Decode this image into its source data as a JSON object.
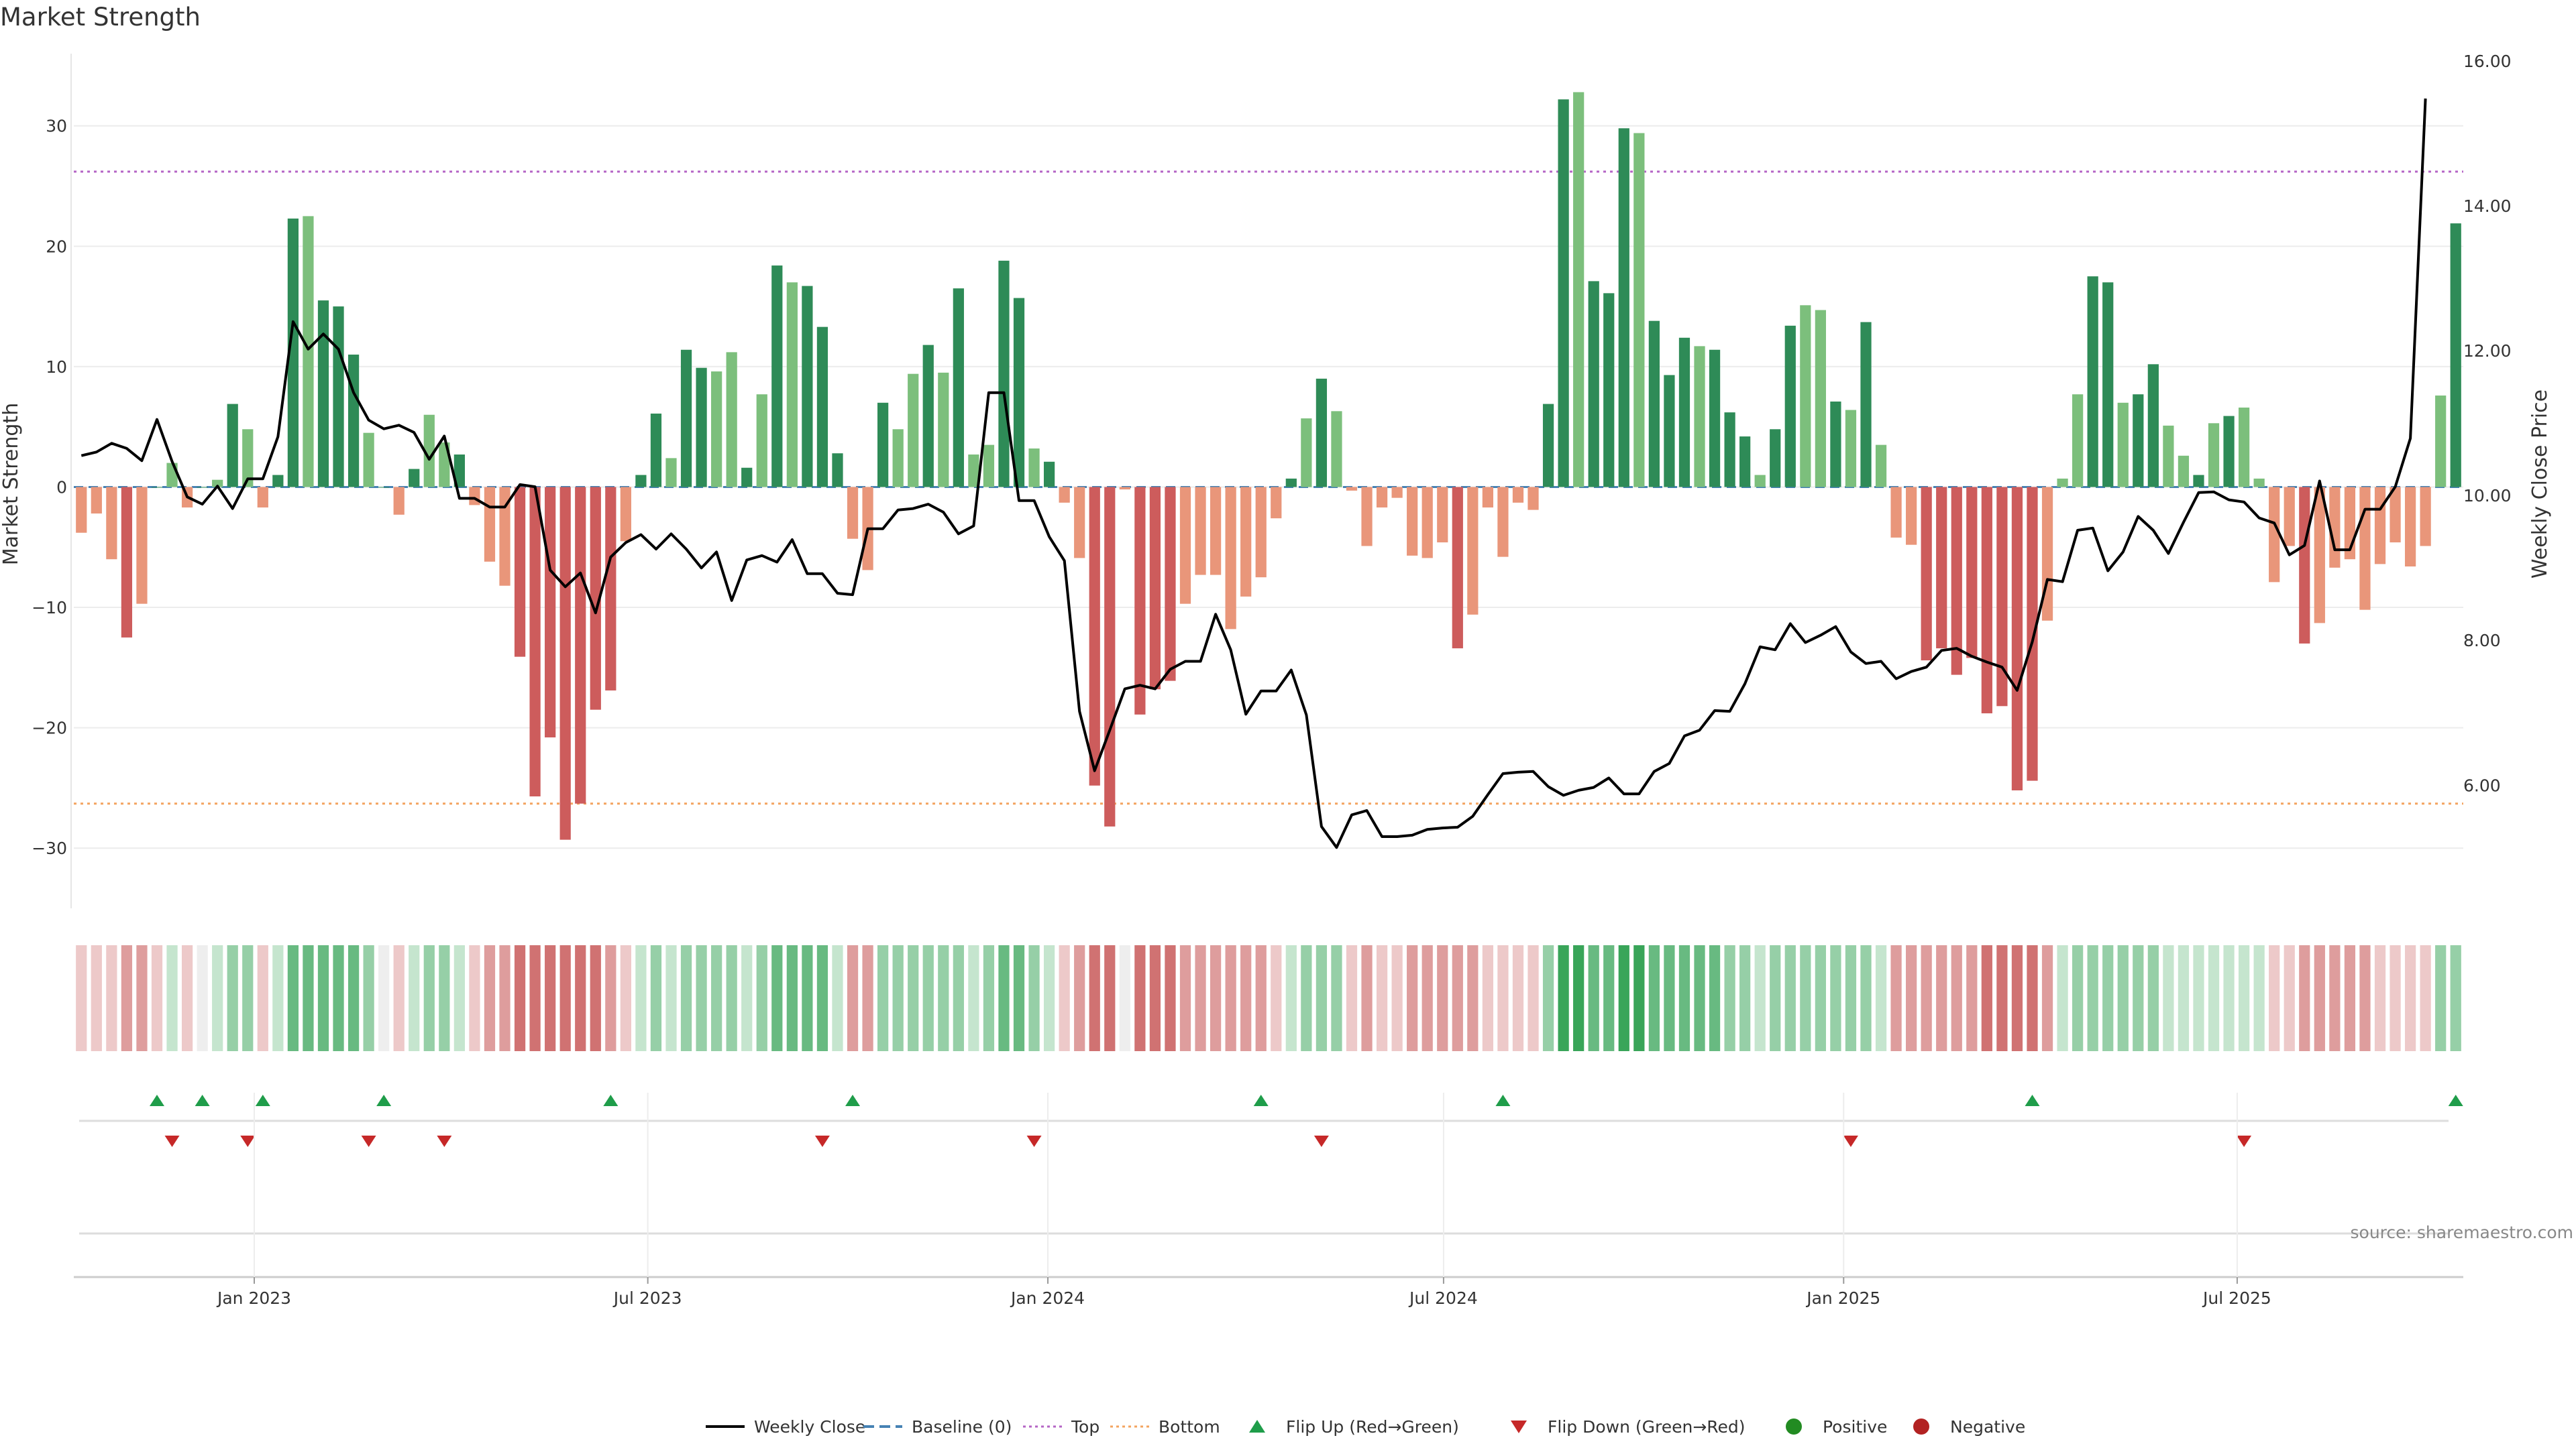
{
  "title": "Market Strength",
  "source": "source: sharemaestro.com",
  "colors": {
    "pos_strong": "#2e8b57",
    "pos_light": "#7cbf7c",
    "neg_strong": "#cd5c5c",
    "neg_light": "#e9967a",
    "close_line": "#000000",
    "baseline": "#4682b4",
    "top_line": "#b565c6",
    "bottom_line": "#f4a460",
    "flip_up": "#1f9d4a",
    "flip_down": "#c62828",
    "positive": "#228b22",
    "negative": "#b22222"
  },
  "chart_data": {
    "type": "bar",
    "title": "Market Strength",
    "ylabel": "Market Strength",
    "y2label": "Weekly Close Price",
    "ylim": [
      -35,
      36
    ],
    "y2lim": [
      4.3,
      16.1
    ],
    "yticks": [
      "30",
      "20",
      "10",
      "0",
      "−10",
      "−20",
      "−30"
    ],
    "yticks_values": [
      30,
      20,
      10,
      0,
      -10,
      -20,
      -30
    ],
    "y2ticks": [
      "16.00",
      "14.00",
      "12.00",
      "10.00",
      "8.00",
      "6.00"
    ],
    "y2ticks_values": [
      16,
      14,
      12,
      10,
      8,
      6
    ],
    "x_start": "2022-10-10",
    "x_end": "2025-10-13",
    "xticks": [
      "Jan 2023",
      "Jul 2023",
      "Jan 2024",
      "Jul 2024",
      "Jan 2025",
      "Jul 2025"
    ],
    "xticks_dates": [
      "2023-01-01",
      "2023-07-01",
      "2024-01-01",
      "2024-07-01",
      "2025-01-01",
      "2025-07-01"
    ],
    "reference_lines": {
      "baseline": 0,
      "top": 26.2,
      "bottom": -26.3
    },
    "strength": [
      -3.8,
      -2.2,
      -6,
      -12.5,
      -9.7,
      0,
      2,
      -1.7,
      0,
      0.6,
      6.9,
      4.8,
      -1.7,
      1,
      22.3,
      22.5,
      15.5,
      15,
      11,
      4.5,
      0,
      -2.3,
      1.5,
      6,
      3.7,
      2.7,
      -1.5,
      -6.2,
      -8.2,
      -14.1,
      -25.7,
      -20.8,
      -29.3,
      -26.3,
      -18.5,
      -16.9,
      -4.5,
      1,
      6.1,
      2.4,
      11.4,
      9.9,
      9.6,
      11.2,
      1.6,
      7.7,
      18.4,
      17,
      16.7,
      13.3,
      2.8,
      -4.3,
      -6.9,
      7,
      4.8,
      9.4,
      11.8,
      9.5,
      16.5,
      2.7,
      3.5,
      18.8,
      15.7,
      3.2,
      2.1,
      -1.3,
      -5.9,
      -24.8,
      -28.2,
      -0.2,
      -18.9,
      -16.8,
      -16.1,
      -9.7,
      -7.3,
      -7.3,
      -11.8,
      -9.1,
      -7.5,
      -2.6,
      0.7,
      5.7,
      9,
      6.3,
      -0.3,
      -4.9,
      -1.7,
      -0.9,
      -5.7,
      -5.9,
      -4.6,
      -13.4,
      -10.6,
      -1.7,
      -5.8,
      -1.3,
      -1.9,
      6.9,
      32.2,
      32.8,
      17.1,
      16.1,
      29.8,
      29.4,
      13.8,
      9.3,
      12.4,
      11.7,
      11.4,
      6.2,
      4.2,
      1,
      4.8,
      13.4,
      15.1,
      14.7,
      7.1,
      6.4,
      13.7,
      3.5,
      -4.2,
      -4.8,
      -14.4,
      -13.4,
      -15.6,
      -14.2,
      -18.8,
      -18.2,
      -25.2,
      -24.4,
      -11.1,
      0.7,
      7.7,
      17.5,
      17,
      7,
      7.7,
      10.2,
      5.1,
      2.6,
      1,
      5.3,
      5.9,
      6.6,
      0.7,
      -7.9,
      -4.9,
      -13,
      -11.3,
      -6.7,
      -6,
      -10.2,
      -6.4,
      -4.6,
      -6.6,
      -4.9,
      7.6,
      21.9
    ],
    "close": [
      10.55,
      10.6,
      10.72,
      10.65,
      10.48,
      11.05,
      10.47,
      9.98,
      9.88,
      10.13,
      9.82,
      10.23,
      10.23,
      10.81,
      12.4,
      12.02,
      12.23,
      12.02,
      11.42,
      11.04,
      10.92,
      10.97,
      10.87,
      10.5,
      10.82,
      9.96,
      9.96,
      9.84,
      9.84,
      10.15,
      10.12,
      8.97,
      8.74,
      8.93,
      8.38,
      9.15,
      9.35,
      9.46,
      9.26,
      9.47,
      9.26,
      9,
      9.22,
      8.55,
      9.11,
      9.17,
      9.08,
      9.39,
      8.92,
      8.92,
      8.65,
      8.63,
      9.54,
      9.54,
      9.8,
      9.82,
      9.88,
      9.77,
      9.47,
      9.58,
      11.42,
      11.42,
      9.93,
      9.93,
      9.43,
      9.1,
      7.02,
      6.2,
      6.76,
      7.33,
      7.38,
      7.33,
      7.6,
      7.71,
      7.71,
      8.36,
      7.87,
      6.98,
      7.3,
      7.3,
      7.59,
      6.97,
      5.43,
      5.14,
      5.59,
      5.65,
      5.29,
      5.29,
      5.31,
      5.39,
      5.41,
      5.42,
      5.57,
      5.87,
      6.16,
      6.18,
      6.19,
      5.98,
      5.86,
      5.93,
      5.97,
      6.1,
      5.88,
      5.88,
      6.19,
      6.3,
      6.68,
      6.76,
      7.03,
      7.02,
      7.4,
      7.91,
      7.87,
      8.23,
      7.97,
      8.07,
      8.19,
      7.84,
      7.68,
      7.71,
      7.47,
      7.57,
      7.63,
      7.86,
      7.89,
      7.78,
      7.7,
      7.63,
      7.31,
      7.98,
      8.84,
      8.81,
      9.52,
      9.55,
      8.96,
      9.22,
      9.71,
      9.52,
      9.2,
      9.63,
      10.04,
      10.05,
      9.94,
      9.91,
      9.69,
      9.62,
      9.18,
      9.31,
      10.2,
      9.25,
      9.25,
      9.81,
      9.81,
      10.12,
      10.79,
      15.48
    ],
    "heat": [
      -1,
      -1,
      -1,
      -2,
      -2,
      -1,
      1,
      -1,
      0,
      1,
      2,
      2,
      -1,
      1,
      3,
      3,
      3,
      3,
      3,
      2,
      0,
      -1,
      1,
      2,
      2,
      1,
      -1,
      -2,
      -2,
      -3,
      -3,
      -3,
      -3,
      -3,
      -3,
      -2,
      -1,
      1,
      2,
      1,
      2,
      2,
      2,
      2,
      1,
      2,
      3,
      3,
      3,
      3,
      1,
      -2,
      -2,
      2,
      2,
      2,
      2,
      2,
      2,
      1,
      2,
      3,
      3,
      2,
      1,
      -1,
      -2,
      -3,
      -3,
      0,
      -3,
      -3,
      -3,
      -2,
      -2,
      -2,
      -2,
      -2,
      -2,
      -1,
      1,
      2,
      2,
      2,
      -1,
      -2,
      -1,
      -1,
      -2,
      -2,
      -2,
      -2,
      -2,
      -1,
      -1,
      -1,
      -1,
      2,
      4,
      4,
      3,
      3,
      4,
      4,
      3,
      3,
      3,
      3,
      3,
      2,
      2,
      1,
      2,
      2,
      2,
      2,
      2,
      2,
      2,
      1,
      -2,
      -2,
      -2,
      -2,
      -2,
      -2,
      -3,
      -3,
      -3,
      -3,
      -2,
      1,
      2,
      2,
      2,
      2,
      2,
      2,
      1,
      1,
      1,
      1,
      1,
      1,
      1,
      -1,
      -1,
      -2,
      -2,
      -2,
      -2,
      -2,
      -1,
      -1,
      -1,
      -1,
      2,
      2
    ],
    "flip_up_weeks": [
      5,
      8,
      12,
      20,
      35,
      51,
      78,
      94,
      129,
      157
    ],
    "flip_down_weeks": [
      6,
      11,
      19,
      24,
      49,
      63,
      82,
      117,
      143
    ],
    "legend": [
      {
        "label": "Weekly Close",
        "kind": "line"
      },
      {
        "label": "Baseline (0)",
        "kind": "dash"
      },
      {
        "label": "Top",
        "kind": "dot"
      },
      {
        "label": "Bottom",
        "kind": "dot2"
      },
      {
        "label": "Flip Up (Red→Green)",
        "kind": "up"
      },
      {
        "label": "Flip Down (Green→Red)",
        "kind": "down"
      },
      {
        "label": "Positive",
        "kind": "pos"
      },
      {
        "label": "Negative",
        "kind": "neg"
      }
    ]
  }
}
